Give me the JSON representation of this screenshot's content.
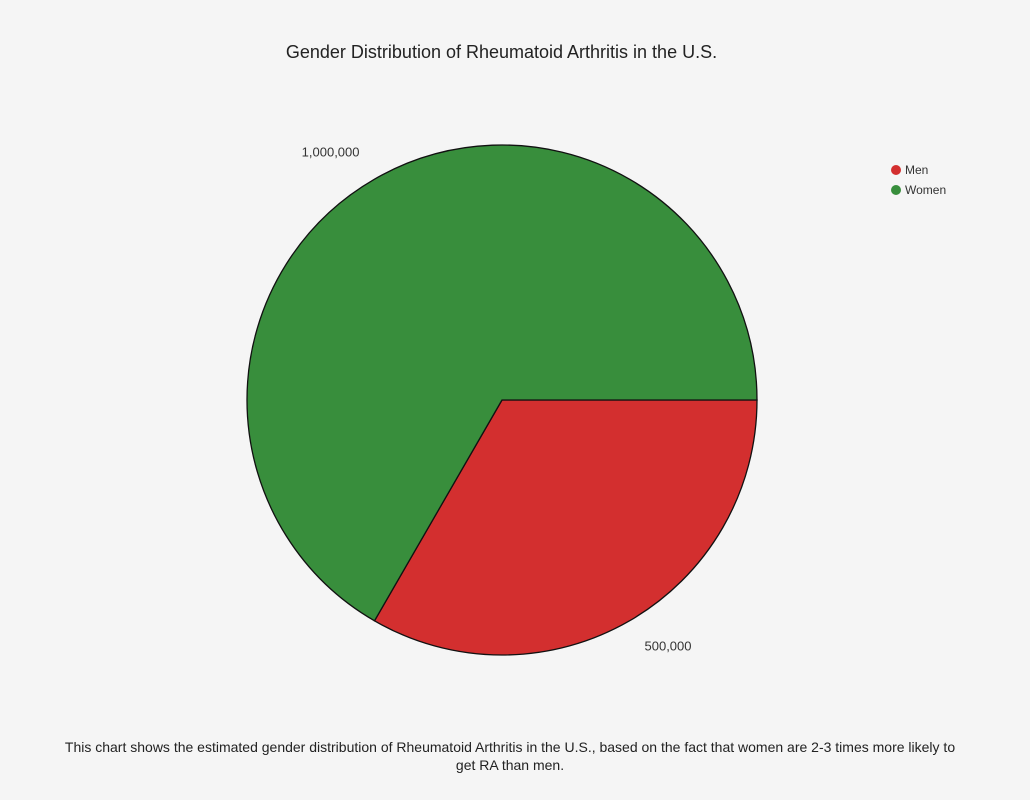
{
  "chart_data": {
    "type": "pie",
    "title": "Gender Distribution of Rheumatoid Arthritis in the U.S.",
    "categories": [
      "Men",
      "Women"
    ],
    "values": [
      500000,
      1000000
    ],
    "value_labels": [
      "500,000",
      "1,000,000"
    ],
    "colors": [
      "#d32f2f",
      "#388e3c"
    ],
    "legend_position": "top-right",
    "start_angle_deg": 0,
    "direction": "clockwise"
  },
  "caption": "This chart shows the estimated gender distribution of Rheumatoid Arthritis in the U.S., based on the fact that women are 2-3 times more likely to get RA than men."
}
